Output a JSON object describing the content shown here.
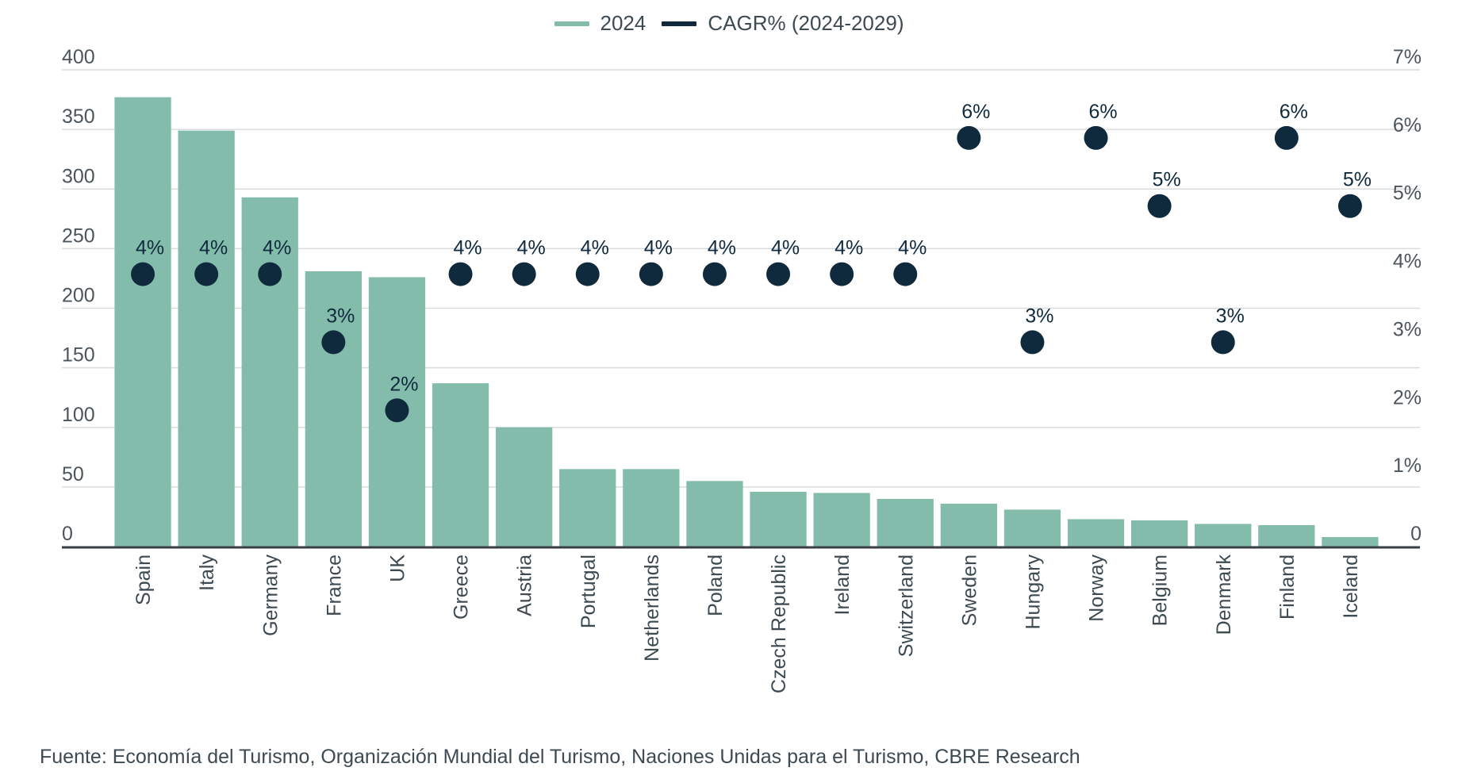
{
  "legend": {
    "series_bar_label": "2024",
    "series_dot_label": "CAGR% (2024-2029)"
  },
  "source_text": "Fuente: Economía del Turismo, Organización Mundial del Turismo, Naciones Unidas para el Turismo, CBRE Research",
  "colors": {
    "bar": "#84bcab",
    "dot": "#0f2a3d",
    "grid": "#d9dcdf",
    "axis": "#3a3f44"
  },
  "chart_data": {
    "type": "bar",
    "categories": [
      "Spain",
      "Italy",
      "Germany",
      "France",
      "UK",
      "Greece",
      "Austria",
      "Portugal",
      "Netherlands",
      "Poland",
      "Czech Republic",
      "Ireland",
      "Switzerland",
      "Sweden",
      "Hungary",
      "Norway",
      "Belgium",
      "Denmark",
      "Finland",
      "Iceland"
    ],
    "series": [
      {
        "name": "2024",
        "type": "bar",
        "axis": "left",
        "values": [
          377,
          349,
          293,
          231,
          226,
          137,
          100,
          65,
          65,
          55,
          46,
          45,
          40,
          36,
          31,
          23,
          22,
          19,
          18,
          8
        ]
      },
      {
        "name": "CAGR% (2024-2029)",
        "type": "scatter",
        "axis": "right",
        "values": [
          4,
          4,
          4,
          3,
          2,
          4,
          4,
          4,
          4,
          4,
          4,
          4,
          4,
          6,
          3,
          6,
          5,
          3,
          6,
          5
        ],
        "labels": [
          "4%",
          "4%",
          "4%",
          "3%",
          "2%",
          "4%",
          "4%",
          "4%",
          "4%",
          "4%",
          "4%",
          "4%",
          "4%",
          "6%",
          "3%",
          "6%",
          "5%",
          "3%",
          "6%",
          "5%"
        ]
      }
    ],
    "ylim": [
      0,
      400
    ],
    "yticks": [
      "0",
      "50",
      "100",
      "150",
      "200",
      "250",
      "300",
      "350",
      "400"
    ],
    "y2lim": [
      0,
      7
    ],
    "y2ticks": [
      "0",
      "1%",
      "2%",
      "3%",
      "4%",
      "5%",
      "6%",
      "7%"
    ],
    "grid": true,
    "legend_position": "top-center"
  }
}
